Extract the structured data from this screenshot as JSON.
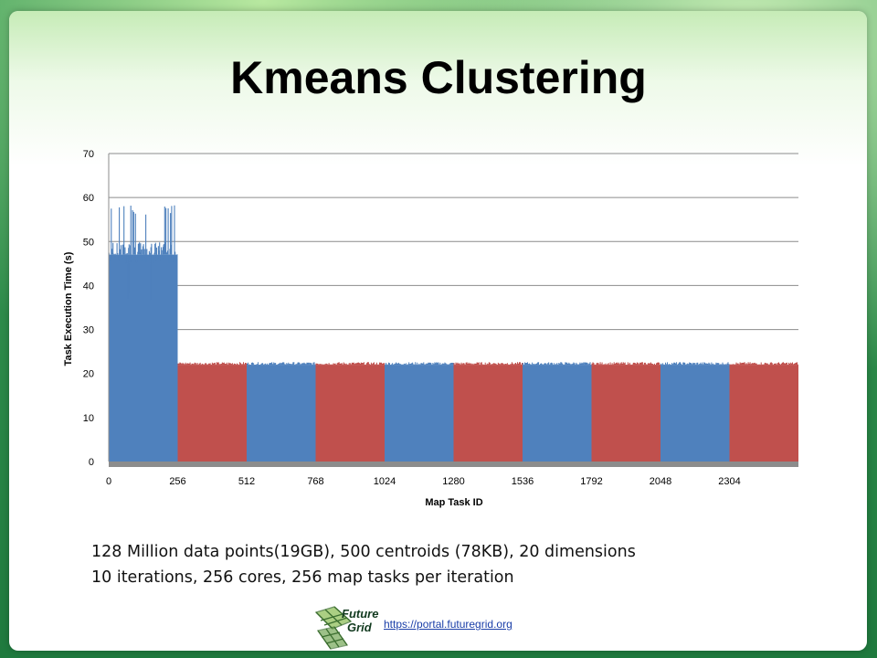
{
  "slide": {
    "title": "Kmeans Clustering",
    "caption_line1": "128 Million data points(19GB), 500 centroids (78KB), 20 dimensions",
    "caption_line2": "10 iterations, 256 cores, 256 map tasks per iteration",
    "logo_text_line1": "Future",
    "logo_text_line2": "Grid",
    "url": "https://portal.futuregrid.org"
  },
  "colors": {
    "blue": "#4f81bd",
    "red": "#c0504d",
    "grid": "#8c8c8c",
    "url": "#1a3ea8"
  },
  "chart_data": {
    "type": "bar",
    "title": "",
    "xlabel": "Map Task ID",
    "ylabel": "Task Execution Time (s)",
    "ylim": [
      0,
      70
    ],
    "y_ticks": [
      0,
      10,
      20,
      30,
      40,
      50,
      60,
      70
    ],
    "xlim": [
      0,
      2560
    ],
    "x_ticks": [
      0,
      256,
      512,
      768,
      1024,
      1280,
      1536,
      1792,
      2048,
      2304
    ],
    "grid": true,
    "legend": "none",
    "series": [
      {
        "iteration": 1,
        "x_range": [
          0,
          256
        ],
        "color": "blue",
        "baseline": 47,
        "approx_range": [
          36.5,
          59
        ]
      },
      {
        "iteration": 2,
        "x_range": [
          256,
          512
        ],
        "color": "red",
        "baseline": 22
      },
      {
        "iteration": 3,
        "x_range": [
          512,
          768
        ],
        "color": "blue",
        "baseline": 22
      },
      {
        "iteration": 4,
        "x_range": [
          768,
          1024
        ],
        "color": "red",
        "baseline": 22
      },
      {
        "iteration": 5,
        "x_range": [
          1024,
          1280
        ],
        "color": "blue",
        "baseline": 22
      },
      {
        "iteration": 6,
        "x_range": [
          1280,
          1536
        ],
        "color": "red",
        "baseline": 22
      },
      {
        "iteration": 7,
        "x_range": [
          1536,
          1792
        ],
        "color": "blue",
        "baseline": 22
      },
      {
        "iteration": 8,
        "x_range": [
          1792,
          2048
        ],
        "color": "red",
        "baseline": 22
      },
      {
        "iteration": 9,
        "x_range": [
          2048,
          2304
        ],
        "color": "blue",
        "baseline": 22
      },
      {
        "iteration": 10,
        "x_range": [
          2304,
          2560
        ],
        "color": "red",
        "baseline": 22
      }
    ]
  }
}
